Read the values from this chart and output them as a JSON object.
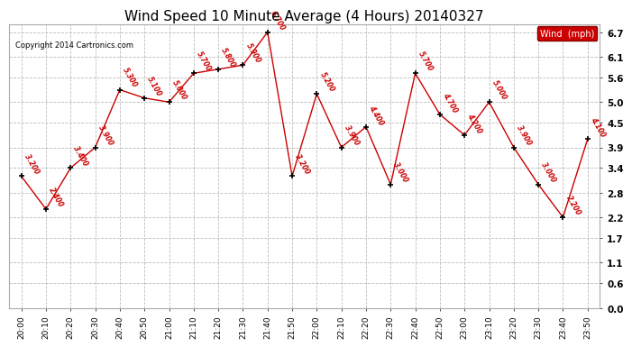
{
  "title": "Wind Speed 10 Minute Average (4 Hours) 20140327",
  "copyright": "Copyright 2014 Cartronics.com",
  "legend_label": "Wind  (mph)",
  "times": [
    "20:00",
    "20:10",
    "20:20",
    "20:30",
    "20:40",
    "20:50",
    "21:00",
    "21:10",
    "21:20",
    "21:30",
    "21:40",
    "21:50",
    "22:00",
    "22:10",
    "22:20",
    "22:30",
    "22:40",
    "22:50",
    "23:00",
    "23:10",
    "23:20",
    "23:30",
    "23:40",
    "23:50"
  ],
  "values": [
    3.2,
    2.4,
    3.4,
    3.9,
    5.3,
    5.1,
    5.0,
    5.7,
    5.8,
    5.9,
    6.7,
    3.2,
    5.2,
    3.9,
    4.4,
    3.0,
    5.7,
    4.7,
    4.2,
    5.0,
    3.9,
    3.0,
    2.2,
    4.1
  ],
  "labels": [
    "3.200",
    "2.400",
    "3.400",
    "3.900",
    "5.300",
    "5.100",
    "5.000",
    "5.700",
    "5.800",
    "5.900",
    "6.700",
    "3.200",
    "5.200",
    "3.900",
    "4.400",
    "3.000",
    "5.700",
    "4.700",
    "4.200",
    "5.000",
    "3.900",
    "3.000",
    "2.200",
    "4.100"
  ],
  "line_color": "#cc0000",
  "marker_color": "#000000",
  "label_color": "#cc0000",
  "grid_color": "#bbbbbb",
  "bg_color": "#ffffff",
  "yticks": [
    0.0,
    0.6,
    1.1,
    1.7,
    2.2,
    2.8,
    3.4,
    3.9,
    4.5,
    5.0,
    5.6,
    6.1,
    6.7
  ],
  "ylim": [
    0.0,
    6.9
  ],
  "title_fontsize": 11,
  "legend_bg": "#cc0000",
  "legend_fg": "#ffffff"
}
